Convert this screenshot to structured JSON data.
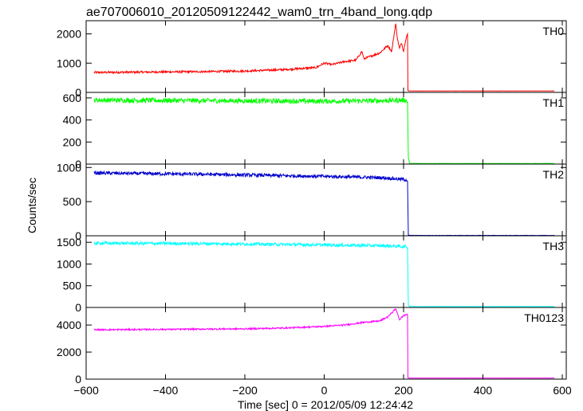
{
  "chart_data": {
    "type": "line",
    "title": "ae707006010_20120509122442_wam0_trn_4band_long.qdp",
    "xlabel": "Time [sec] 0 = 2012/05/09 12:24:42",
    "ylabel": "Counts/sec",
    "xlim": [
      -600,
      610
    ],
    "x_ticks": [
      -600,
      -400,
      -200,
      0,
      200,
      400,
      600
    ],
    "x_tick_labels": [
      "−600",
      "−400",
      "−200",
      "0",
      "200",
      "400",
      "600"
    ],
    "grid": false,
    "panels": [
      {
        "label": "TH0",
        "color": "#ff0000",
        "ylim": [
          0,
          2450
        ],
        "yticks": [
          0,
          1000,
          2000
        ],
        "x": [
          -580,
          -500,
          -400,
          -300,
          -200,
          -100,
          -20,
          0,
          20,
          50,
          80,
          95,
          100,
          110,
          140,
          160,
          170,
          180,
          185,
          190,
          195,
          200,
          205,
          210,
          211,
          215,
          580
        ],
        "y": [
          680,
          690,
          700,
          710,
          730,
          780,
          850,
          1000,
          950,
          1050,
          1100,
          1400,
          1150,
          1200,
          1350,
          1600,
          1400,
          2350,
          1800,
          1500,
          1700,
          1400,
          1800,
          2000,
          60,
          50,
          50
        ],
        "noise": 35
      },
      {
        "label": "TH1",
        "color": "#00ff00",
        "ylim": [
          0,
          650
        ],
        "yticks": [
          0,
          200,
          400,
          600
        ],
        "x": [
          -580,
          -300,
          0,
          150,
          205,
          210,
          212,
          215,
          580
        ],
        "y": [
          580,
          575,
          570,
          575,
          580,
          560,
          60,
          5,
          5
        ],
        "noise": 22
      },
      {
        "label": "TH2",
        "color": "#0000cc",
        "ylim": [
          0,
          1050
        ],
        "yticks": [
          0,
          500,
          1000
        ],
        "x": [
          -580,
          -300,
          0,
          150,
          208,
          210,
          212,
          215,
          580
        ],
        "y": [
          920,
          900,
          870,
          850,
          820,
          800,
          10,
          5,
          5
        ],
        "noise": 25
      },
      {
        "label": "TH3",
        "color": "#00ffff",
        "ylim": [
          0,
          1650
        ],
        "yticks": [
          0,
          500,
          1000,
          1500
        ],
        "x": [
          -580,
          -300,
          0,
          150,
          208,
          210,
          212,
          215,
          580
        ],
        "y": [
          1480,
          1470,
          1440,
          1420,
          1400,
          1380,
          60,
          20,
          20
        ],
        "noise": 35
      },
      {
        "label": "TH0123",
        "color": "#ff00ff",
        "ylim": [
          0,
          5300
        ],
        "yticks": [
          0,
          2000,
          4000
        ],
        "x": [
          -580,
          -400,
          -200,
          -100,
          0,
          50,
          100,
          140,
          160,
          180,
          185,
          190,
          200,
          210,
          211,
          215,
          580
        ],
        "y": [
          3650,
          3680,
          3720,
          3780,
          3900,
          4000,
          4200,
          4300,
          4600,
          5200,
          4800,
          4400,
          4700,
          4800,
          100,
          80,
          80
        ],
        "noise": 55
      }
    ]
  }
}
